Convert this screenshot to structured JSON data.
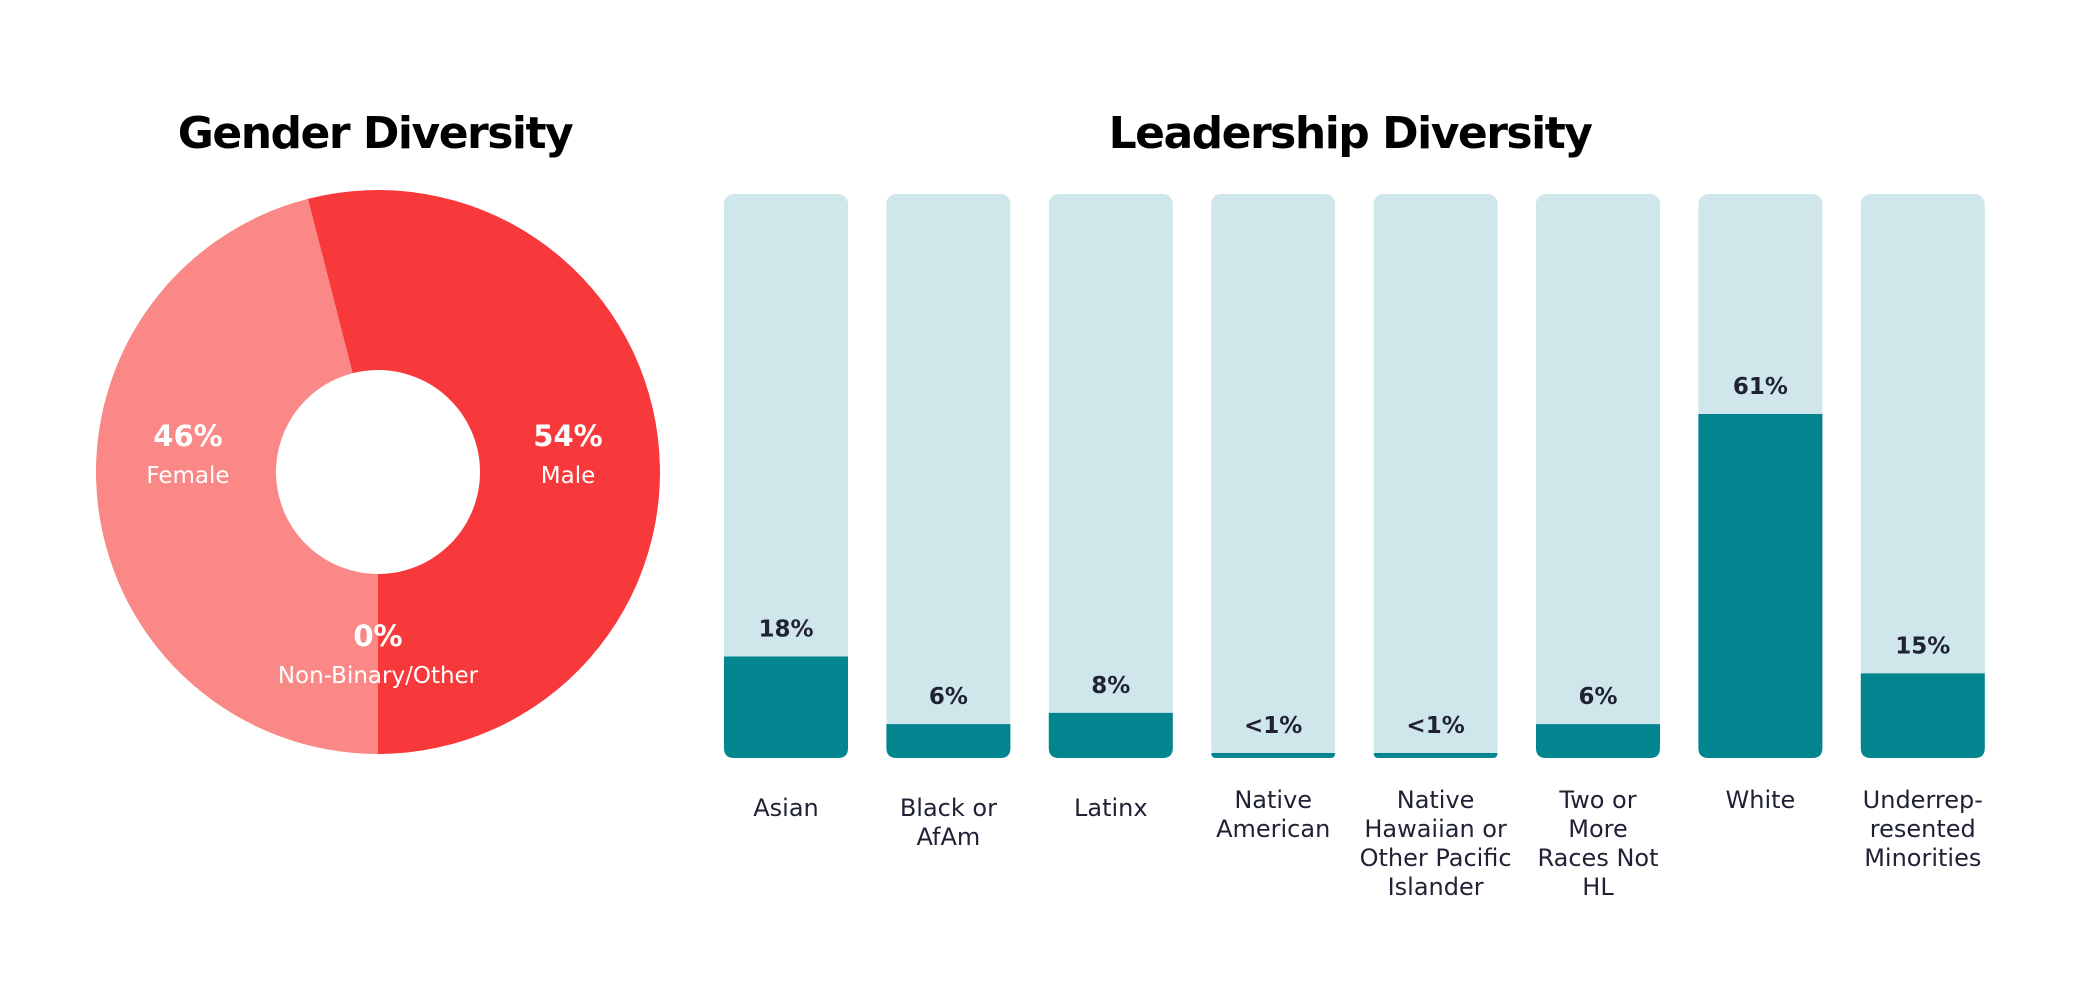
{
  "chart_data": [
    {
      "type": "pie",
      "title": "Gender Diversity",
      "categories": [
        "Male",
        "Female",
        "Non-Binary/Other"
      ],
      "values": [
        54,
        46,
        0
      ],
      "labels": [
        "54%",
        "46%",
        "0%"
      ],
      "colors": [
        "#f7393c",
        "#f98886",
        "#f98886"
      ]
    },
    {
      "type": "bar",
      "title": "Leadership Diversity",
      "categories": [
        [
          "Asian"
        ],
        [
          "Black or",
          "AfAm"
        ],
        [
          "Latinx"
        ],
        [
          "Native",
          "American"
        ],
        [
          "Native",
          "Hawaiian or",
          "Other Pacific",
          "Islander"
        ],
        [
          "Two or",
          "More",
          "Races Not",
          "HL"
        ],
        [
          "White"
        ],
        [
          "Underrep-",
          "resented",
          "Minorities"
        ]
      ],
      "values": [
        18,
        6,
        8,
        0.7,
        0.7,
        6,
        61,
        15
      ],
      "labels": [
        "18%",
        "6%",
        "8%",
        "<1%",
        "<1%",
        "6%",
        "61%",
        "15%"
      ],
      "ylim": [
        0,
        100
      ],
      "colors": {
        "fill": "#038590",
        "track": "#cfe6ea"
      }
    }
  ]
}
